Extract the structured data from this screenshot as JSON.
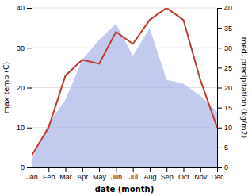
{
  "chart_data": {
    "type": "line",
    "categories": [
      "Jan",
      "Feb",
      "Mar",
      "Apr",
      "May",
      "Jun",
      "Jul",
      "Aug",
      "Sep",
      "Oct",
      "Nov",
      "Dec"
    ],
    "x_label": "date (month)",
    "y_label": "max temp (C)",
    "y2_label": "med. precipitation (kg/m2)",
    "series": [
      {
        "type": "area",
        "axis": "y2",
        "color": "#aab4e8",
        "values": [
          2,
          11,
          17,
          27,
          32,
          36,
          28,
          35,
          22,
          21,
          18,
          14
        ]
      },
      {
        "type": "line",
        "color": "#c0392b",
        "values": [
          3,
          10,
          23,
          27,
          26,
          34,
          31,
          37,
          40,
          37,
          22,
          10
        ]
      }
    ],
    "ylim": [
      0,
      40
    ],
    "yticks": [
      0,
      10,
      20,
      30,
      40
    ],
    "y2lim": [
      0,
      40
    ],
    "y2ticks": [
      0,
      5,
      10,
      15,
      20,
      25,
      30,
      35,
      40
    ],
    "grid": true
  }
}
